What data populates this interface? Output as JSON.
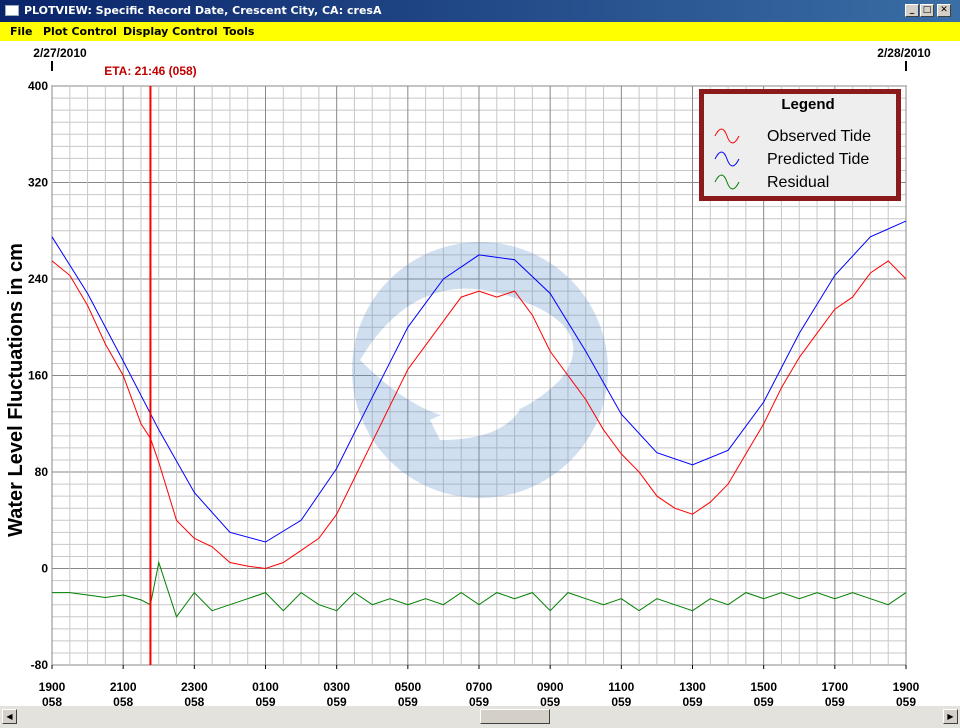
{
  "window": {
    "title": "PLOTVIEW: Specific Record Date, Crescent City, CA: cresA",
    "minimize_glyph": "_",
    "maximize_glyph": "□",
    "close_glyph": "✕"
  },
  "menu": {
    "file": "File",
    "plot_control": "Plot Control",
    "display_control": "Display Control",
    "tools": "Tools"
  },
  "chart_data": {
    "type": "line",
    "xlabel": "",
    "ylabel": "Water Level Fluctuations in cm",
    "ylim": [
      -80,
      400
    ],
    "y_ticks": [
      -80,
      0,
      80,
      160,
      240,
      320,
      400
    ],
    "xlim_hours": [
      0,
      24
    ],
    "x_ticks": [
      {
        "time": "1900",
        "day": "058"
      },
      {
        "time": "2100",
        "day": "058"
      },
      {
        "time": "2300",
        "day": "058"
      },
      {
        "time": "0100",
        "day": "059"
      },
      {
        "time": "0300",
        "day": "059"
      },
      {
        "time": "0500",
        "day": "059"
      },
      {
        "time": "0700",
        "day": "059"
      },
      {
        "time": "0900",
        "day": "059"
      },
      {
        "time": "1100",
        "day": "059"
      },
      {
        "time": "1300",
        "day": "059"
      },
      {
        "time": "1500",
        "day": "059"
      },
      {
        "time": "1700",
        "day": "059"
      },
      {
        "time": "1900",
        "day": "059"
      }
    ],
    "date_markers": {
      "start": "2/27/2010",
      "end": "2/28/2010"
    },
    "eta": {
      "label": "ETA: 21:46 (058)",
      "time": "21:46"
    },
    "grid": true,
    "legend": {
      "title": "Legend",
      "position": "top-right"
    },
    "series": [
      {
        "name": "Predicted Tide",
        "color": "#0000ff",
        "points": [
          [
            "19:00",
            275
          ],
          [
            "20:00",
            228
          ],
          [
            "21:00",
            172
          ],
          [
            "22:00",
            115
          ],
          [
            "23:00",
            63
          ],
          [
            "00:00",
            30
          ],
          [
            "01:00",
            22
          ],
          [
            "02:00",
            40
          ],
          [
            "03:00",
            83
          ],
          [
            "04:00",
            142
          ],
          [
            "05:00",
            200
          ],
          [
            "06:00",
            240
          ],
          [
            "07:00",
            260
          ],
          [
            "08:00",
            256
          ],
          [
            "09:00",
            228
          ],
          [
            "10:00",
            180
          ],
          [
            "11:00",
            128
          ],
          [
            "12:00",
            96
          ],
          [
            "13:00",
            86
          ],
          [
            "14:00",
            98
          ],
          [
            "15:00",
            138
          ],
          [
            "16:00",
            195
          ],
          [
            "17:00",
            243
          ],
          [
            "18:00",
            275
          ],
          [
            "19:00",
            288
          ]
        ]
      },
      {
        "name": "Observed Tide",
        "color": "#ff0000",
        "points": [
          [
            "19:00",
            255
          ],
          [
            "19:30",
            243
          ],
          [
            "20:00",
            218
          ],
          [
            "20:30",
            186
          ],
          [
            "21:00",
            160
          ],
          [
            "21:30",
            120
          ],
          [
            "21:46",
            108
          ],
          [
            "22:00",
            88
          ],
          [
            "22:30",
            40
          ],
          [
            "23:00",
            25
          ],
          [
            "23:30",
            18
          ],
          [
            "00:00",
            5
          ],
          [
            "00:30",
            2
          ],
          [
            "01:00",
            0
          ],
          [
            "01:30",
            5
          ],
          [
            "02:00",
            15
          ],
          [
            "02:30",
            25
          ],
          [
            "03:00",
            45
          ],
          [
            "03:30",
            75
          ],
          [
            "04:00",
            105
          ],
          [
            "04:30",
            135
          ],
          [
            "05:00",
            165
          ],
          [
            "05:30",
            185
          ],
          [
            "06:00",
            205
          ],
          [
            "06:30",
            225
          ],
          [
            "07:00",
            230
          ],
          [
            "07:30",
            225
          ],
          [
            "08:00",
            230
          ],
          [
            "08:30",
            210
          ],
          [
            "09:00",
            180
          ],
          [
            "09:30",
            160
          ],
          [
            "10:00",
            140
          ],
          [
            "10:30",
            115
          ],
          [
            "11:00",
            95
          ],
          [
            "11:30",
            80
          ],
          [
            "12:00",
            60
          ],
          [
            "12:30",
            50
          ],
          [
            "13:00",
            45
          ],
          [
            "13:30",
            55
          ],
          [
            "14:00",
            70
          ],
          [
            "14:30",
            95
          ],
          [
            "15:00",
            120
          ],
          [
            "15:30",
            150
          ],
          [
            "16:00",
            175
          ],
          [
            "16:30",
            195
          ],
          [
            "17:00",
            215
          ],
          [
            "17:30",
            225
          ],
          [
            "18:00",
            245
          ],
          [
            "18:30",
            255
          ],
          [
            "19:00",
            240
          ]
        ]
      },
      {
        "name": "Residual",
        "color": "#008000",
        "points": [
          [
            "19:00",
            -20
          ],
          [
            "19:30",
            -20
          ],
          [
            "20:00",
            -22
          ],
          [
            "20:30",
            -24
          ],
          [
            "21:00",
            -22
          ],
          [
            "21:30",
            -26
          ],
          [
            "21:46",
            -30
          ],
          [
            "22:00",
            5
          ],
          [
            "22:30",
            -40
          ],
          [
            "23:00",
            -20
          ],
          [
            "23:30",
            -35
          ],
          [
            "00:00",
            -30
          ],
          [
            "00:30",
            -25
          ],
          [
            "01:00",
            -20
          ],
          [
            "01:30",
            -35
          ],
          [
            "02:00",
            -20
          ],
          [
            "02:30",
            -30
          ],
          [
            "03:00",
            -35
          ],
          [
            "03:30",
            -20
          ],
          [
            "04:00",
            -30
          ],
          [
            "04:30",
            -25
          ],
          [
            "05:00",
            -30
          ],
          [
            "05:30",
            -25
          ],
          [
            "06:00",
            -30
          ],
          [
            "06:30",
            -20
          ],
          [
            "07:00",
            -30
          ],
          [
            "07:30",
            -20
          ],
          [
            "08:00",
            -25
          ],
          [
            "08:30",
            -20
          ],
          [
            "09:00",
            -35
          ],
          [
            "09:30",
            -20
          ],
          [
            "10:00",
            -25
          ],
          [
            "10:30",
            -30
          ],
          [
            "11:00",
            -25
          ],
          [
            "11:30",
            -35
          ],
          [
            "12:00",
            -25
          ],
          [
            "12:30",
            -30
          ],
          [
            "13:00",
            -35
          ],
          [
            "13:30",
            -25
          ],
          [
            "14:00",
            -30
          ],
          [
            "14:30",
            -20
          ],
          [
            "15:00",
            -25
          ],
          [
            "15:30",
            -20
          ],
          [
            "16:00",
            -25
          ],
          [
            "16:30",
            -20
          ],
          [
            "17:00",
            -25
          ],
          [
            "17:30",
            -20
          ],
          [
            "18:00",
            -25
          ],
          [
            "18:30",
            -30
          ],
          [
            "19:00",
            -20
          ]
        ]
      }
    ]
  }
}
